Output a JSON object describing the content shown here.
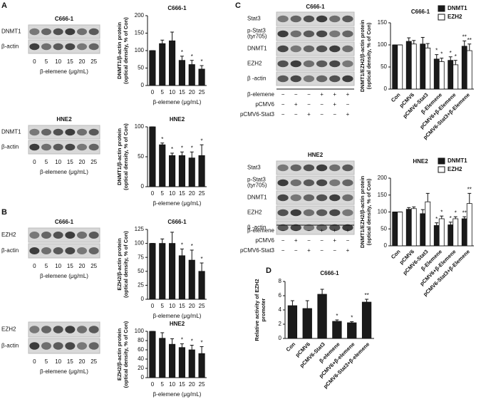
{
  "panels": [
    "A",
    "B",
    "C",
    "D"
  ],
  "blots": [
    {
      "title": "C666-1",
      "rows": [
        "DNMT1",
        "β-actin"
      ],
      "lanes": [
        "0",
        "5",
        "10",
        "15",
        "20",
        "25"
      ],
      "xlabel": "β-elemene (μg/mL)"
    },
    {
      "title": "HNE2",
      "rows": [
        "DNMT1",
        "β-actin"
      ],
      "lanes": [
        "0",
        "5",
        "10",
        "15",
        "20",
        "25"
      ],
      "xlabel": "β-elemene (μg/mL)"
    },
    {
      "title": "C666-1",
      "rows": [
        "EZH2",
        "β-actin"
      ],
      "lanes": [
        "0",
        "5",
        "10",
        "15",
        "20",
        "25"
      ],
      "xlabel": "β-elemene (μg/mL)"
    },
    {
      "rows": [
        "EZH2",
        "β-actin"
      ],
      "lanes": [
        "0",
        "5",
        "10",
        "15",
        "20",
        "25"
      ],
      "xlabel": "β-elemene (μg/mL)"
    },
    {
      "title": "C666-1",
      "rows": [
        "Stat3",
        [
          "p-Stat3",
          "(tyr705)"
        ],
        "DNMT1",
        "EZH2",
        "β -actin"
      ],
      "treatments": [
        {
          "name": "β-elemene",
          "signs": [
            "−",
            "−",
            "−",
            "+",
            "+",
            "+"
          ]
        },
        {
          "name": "pCMV6",
          "signs": [
            "−",
            "+",
            "−",
            "−",
            "+",
            "−"
          ]
        },
        {
          "name": "pCMV6-Stat3",
          "signs": [
            "−",
            "−",
            "+",
            "−",
            "−",
            "+"
          ]
        }
      ]
    },
    {
      "title": "HNE2",
      "rows": [
        "Stat3",
        [
          "p-Stat3",
          "(tyr705)"
        ],
        "DNMT1",
        "EZH2",
        "β -actin"
      ],
      "treatments": [
        {
          "name": "β-elemene",
          "signs": [
            "−",
            "−",
            "−",
            "+",
            "+",
            "+"
          ]
        },
        {
          "name": "pCMV6",
          "signs": [
            "−",
            "+",
            "−",
            "−",
            "+",
            "−"
          ]
        },
        {
          "name": "pCMV6-Stat3",
          "signs": [
            "−",
            "−",
            "+",
            "−",
            "−",
            "+"
          ]
        }
      ]
    }
  ],
  "chart_data": [
    {
      "type": "bar",
      "title": "C666-1",
      "ylabel": [
        "DNMT1/β-actin protein",
        "(optical density, % of Con)"
      ],
      "xlabel": "β-elemene (μg/mL)",
      "categories": [
        "0",
        "5",
        "10",
        "15",
        "20",
        "25"
      ],
      "values": [
        100,
        120,
        128,
        72,
        60,
        47
      ],
      "errors": [
        0,
        10,
        25,
        12,
        12,
        10
      ],
      "sig": [
        null,
        null,
        null,
        "*",
        "*",
        "*"
      ],
      "color": "#1a1a1a",
      "ylim": [
        0,
        200
      ],
      "yticks": [
        0,
        50,
        100,
        150,
        200
      ]
    },
    {
      "type": "bar",
      "title": "HNE2",
      "ylabel": [
        "DNMT1/β-actin protein",
        "(optical density, % of Con)"
      ],
      "xlabel": "β-elemene (μg/mL)",
      "categories": [
        "0",
        "5",
        "10",
        "15",
        "20",
        "25"
      ],
      "values": [
        100,
        70,
        52,
        52,
        48,
        52
      ],
      "errors": [
        0,
        3,
        4,
        6,
        10,
        18
      ],
      "sig": [
        null,
        "*",
        "*",
        "*",
        "*",
        "*"
      ],
      "color": "#1a1a1a",
      "ylim": [
        0,
        100
      ],
      "yticks": [
        0,
        50,
        100
      ]
    },
    {
      "type": "bar",
      "title": "C666-1",
      "ylabel": [
        "EZH2/β-actin protein",
        "(optical density, % of Con)"
      ],
      "xlabel": "β-elemene (μg/mL)",
      "categories": [
        "0",
        "5",
        "10",
        "15",
        "20",
        "25"
      ],
      "values": [
        100,
        100,
        100,
        78,
        70,
        50
      ],
      "errors": [
        0,
        8,
        20,
        12,
        18,
        15
      ],
      "sig": [
        null,
        null,
        null,
        "*",
        "*",
        "*"
      ],
      "color": "#1a1a1a",
      "ylim": [
        0,
        125
      ],
      "yticks": [
        0,
        25,
        50,
        75,
        100,
        125
      ]
    },
    {
      "type": "bar",
      "title": "HNE2",
      "ylabel": [
        "EZH2/β-actin protein",
        "(optical density, % of Con)"
      ],
      "xlabel": "β-elemene (μg/mL)",
      "categories": [
        "0",
        "5",
        "10",
        "15",
        "20",
        "25"
      ],
      "values": [
        100,
        85,
        72,
        65,
        60,
        52
      ],
      "errors": [
        0,
        12,
        12,
        8,
        10,
        15
      ],
      "sig": [
        null,
        null,
        null,
        "*",
        "*",
        "*"
      ],
      "color": "#1a1a1a",
      "ylim": [
        0,
        100
      ],
      "yticks": [
        0,
        20,
        40,
        60,
        80,
        100
      ]
    },
    {
      "type": "bar",
      "title": "C666-1",
      "ylabel": [
        "DNMT1/EZH2/β-actin protein",
        "(optical density, % of Con)"
      ],
      "categories": [
        "Con",
        "pCMV6",
        "pCMV6-Stat3",
        "β-Elemene",
        "pCMV6+β-Elemene",
        "pCMV6-Stat3+β-Elemene"
      ],
      "series": [
        {
          "name": "DNMT1",
          "color": "#1a1a1a",
          "values": [
            100,
            108,
            102,
            68,
            65,
            97
          ],
          "errors": [
            0,
            8,
            15,
            10,
            8,
            12
          ],
          "sig": [
            null,
            null,
            null,
            "*",
            "*",
            "**"
          ]
        },
        {
          "name": "EZH2",
          "color": "#ffffff",
          "values": [
            100,
            102,
            93,
            62,
            55,
            87
          ],
          "errors": [
            0,
            8,
            10,
            8,
            10,
            15
          ],
          "sig": [
            null,
            null,
            null,
            "*",
            "*",
            "**"
          ]
        }
      ],
      "ylim": [
        0,
        150
      ],
      "yticks": [
        0,
        50,
        100,
        150
      ]
    },
    {
      "type": "bar",
      "title": "HNE2",
      "ylabel": [
        "DNMT1/EZH2/β-actin protein",
        "(optical density, % of Con)"
      ],
      "categories": [
        "Con",
        "pCMV6",
        "pCMV6-Stat3",
        "β-Elemene",
        "pCMV6+β-Elemene",
        "pCMV6-Stat3+β-Elemene"
      ],
      "series": [
        {
          "name": "DNMT1",
          "color": "#1a1a1a",
          "values": [
            100,
            108,
            95,
            60,
            62,
            80
          ],
          "errors": [
            0,
            5,
            12,
            8,
            8,
            6
          ],
          "sig": [
            null,
            null,
            null,
            "*",
            "*",
            "**"
          ]
        },
        {
          "name": "EZH2",
          "color": "#ffffff",
          "values": [
            100,
            110,
            130,
            80,
            80,
            125
          ],
          "errors": [
            0,
            5,
            25,
            8,
            6,
            30
          ],
          "sig": [
            null,
            null,
            null,
            "*",
            "*",
            "**"
          ]
        }
      ],
      "ylim": [
        0,
        200
      ],
      "yticks": [
        0,
        50,
        100,
        150,
        200
      ]
    },
    {
      "type": "bar",
      "title": "C666-1",
      "ylabel": [
        "Relative activity of EZH2",
        "promoter"
      ],
      "categories": [
        "Con",
        "pCMV6",
        "pCMV6-Stat3",
        "β-elemene",
        "pCMV6+β-elemene",
        "pCMV6-Stat3+β-elemene"
      ],
      "values": [
        4.6,
        4.2,
        6.2,
        2.4,
        2.2,
        5.1
      ],
      "errors": [
        0.7,
        1.1,
        0.7,
        0.2,
        0.15,
        0.4
      ],
      "sig": [
        null,
        null,
        null,
        "*",
        "*",
        "**"
      ],
      "color": "#1a1a1a",
      "ylim": [
        0,
        8
      ],
      "yticks": [
        0,
        2,
        4,
        6,
        8
      ]
    }
  ]
}
